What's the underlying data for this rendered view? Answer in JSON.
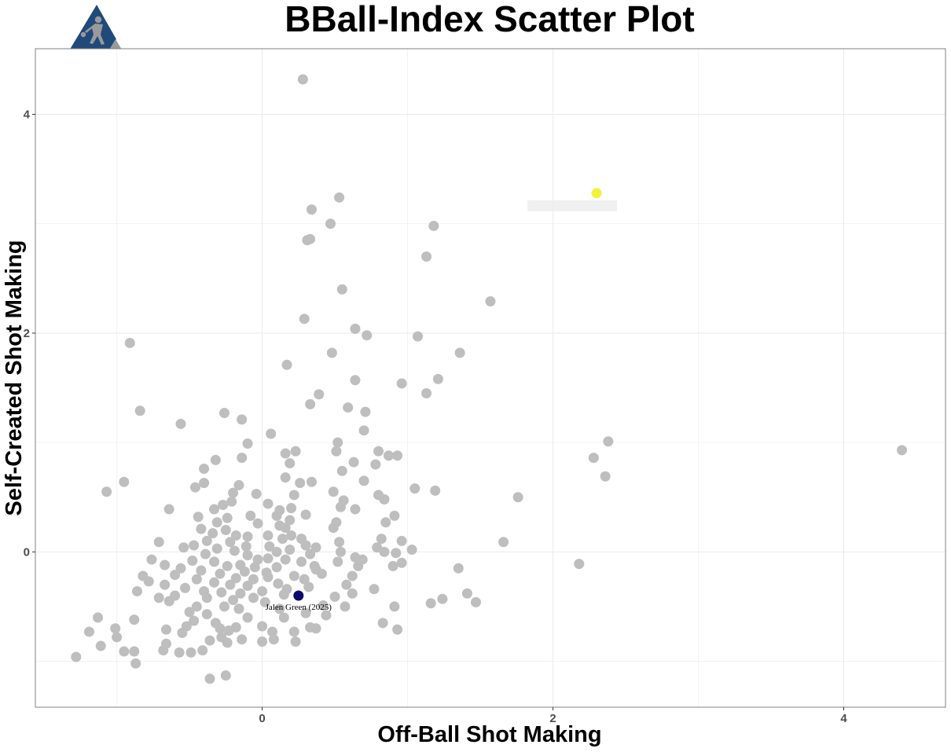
{
  "chart_data": {
    "type": "scatter",
    "title": "BBall-Index Scatter Plot",
    "xlabel": "Off-Ball Shot Making",
    "ylabel": "Self-Created Shot Making",
    "xlim": [
      -1.56,
      4.7
    ],
    "ylim": [
      -1.42,
      4.6
    ],
    "x_ticks": [
      0,
      2,
      4
    ],
    "y_ticks": [
      0,
      2,
      4
    ],
    "grid": true,
    "colors": {
      "background": "#ffffff",
      "grid": "#ebebeb",
      "frame": "#808080",
      "points": "#bebebe",
      "highlight": "#0b0b6e",
      "highlight_yellow": "#f2f23a",
      "logo_blue": "#1f4a7a",
      "logo_gray": "#9a9a9a"
    },
    "logo_icon": "basketball-player-triangle-logo",
    "highlighted": [
      {
        "name": "Jalen Green (2025)",
        "x": 0.25,
        "y": -0.4,
        "color": "#0b0b6e"
      },
      {
        "name": "",
        "x": 2.3,
        "y": 3.28,
        "color": "#f2f23a",
        "label_obscured": true
      }
    ],
    "points": [
      [
        0.28,
        4.32
      ],
      [
        0.53,
        3.24
      ],
      [
        0.34,
        3.13
      ],
      [
        0.47,
        3.0
      ],
      [
        1.18,
        2.98
      ],
      [
        0.33,
        2.86
      ],
      [
        0.31,
        2.85
      ],
      [
        1.13,
        2.7
      ],
      [
        0.55,
        2.4
      ],
      [
        1.57,
        2.29
      ],
      [
        0.29,
        2.13
      ],
      [
        0.64,
        2.04
      ],
      [
        0.72,
        1.98
      ],
      [
        1.07,
        1.97
      ],
      [
        -0.91,
        1.91
      ],
      [
        0.48,
        1.82
      ],
      [
        1.36,
        1.82
      ],
      [
        0.17,
        1.71
      ],
      [
        0.64,
        1.57
      ],
      [
        1.21,
        1.58
      ],
      [
        0.96,
        1.54
      ],
      [
        1.13,
        1.45
      ],
      [
        0.39,
        1.44
      ],
      [
        0.33,
        1.35
      ],
      [
        0.59,
        1.32
      ],
      [
        -0.84,
        1.29
      ],
      [
        0.71,
        1.28
      ],
      [
        -0.26,
        1.27
      ],
      [
        -0.14,
        1.21
      ],
      [
        -0.56,
        1.17
      ],
      [
        0.7,
        1.11
      ],
      [
        0.06,
        1.08
      ],
      [
        0.52,
        1.0
      ],
      [
        -0.1,
        0.99
      ],
      [
        2.38,
        1.01
      ],
      [
        0.16,
        0.9
      ],
      [
        0.23,
        0.92
      ],
      [
        0.51,
        0.92
      ],
      [
        0.8,
        0.92
      ],
      [
        0.87,
        0.88
      ],
      [
        0.93,
        0.88
      ],
      [
        4.4,
        0.93
      ],
      [
        2.28,
        0.86
      ],
      [
        -0.32,
        0.84
      ],
      [
        -0.14,
        0.86
      ],
      [
        0.63,
        0.82
      ],
      [
        0.78,
        0.8
      ],
      [
        0.19,
        0.81
      ],
      [
        -0.4,
        0.76
      ],
      [
        0.55,
        0.74
      ],
      [
        0.16,
        0.68
      ],
      [
        0.34,
        0.64
      ],
      [
        0.7,
        0.65
      ],
      [
        2.36,
        0.69
      ],
      [
        -0.95,
        0.64
      ],
      [
        -0.4,
        0.63
      ],
      [
        -0.46,
        0.59
      ],
      [
        -0.16,
        0.61
      ],
      [
        0.26,
        0.63
      ],
      [
        1.05,
        0.58
      ],
      [
        1.19,
        0.56
      ],
      [
        -1.07,
        0.55
      ],
      [
        0.49,
        0.55
      ],
      [
        0.8,
        0.52
      ],
      [
        0.84,
        0.48
      ],
      [
        1.76,
        0.5
      ],
      [
        -0.2,
        0.54
      ],
      [
        -0.04,
        0.53
      ],
      [
        0.22,
        0.52
      ],
      [
        -0.21,
        0.46
      ],
      [
        0.56,
        0.47
      ],
      [
        -0.27,
        0.43
      ],
      [
        0.04,
        0.44
      ],
      [
        0.2,
        0.4
      ],
      [
        0.12,
        0.38
      ],
      [
        -0.64,
        0.39
      ],
      [
        0.54,
        0.41
      ],
      [
        0.64,
        0.39
      ],
      [
        -0.33,
        0.39
      ],
      [
        -0.08,
        0.33
      ],
      [
        0.1,
        0.33
      ],
      [
        0.3,
        0.34
      ],
      [
        0.91,
        0.33
      ],
      [
        -0.44,
        0.32
      ],
      [
        -0.24,
        0.31
      ],
      [
        0.19,
        0.29
      ],
      [
        0.51,
        0.27
      ],
      [
        0.85,
        0.27
      ],
      [
        -0.31,
        0.27
      ],
      [
        -0.03,
        0.26
      ],
      [
        0.12,
        0.24
      ],
      [
        0.49,
        0.22
      ],
      [
        -0.42,
        0.21
      ],
      [
        -0.25,
        0.2
      ],
      [
        0.16,
        0.22
      ],
      [
        -0.34,
        0.17
      ],
      [
        -0.18,
        0.15
      ],
      [
        0.2,
        0.15
      ],
      [
        -0.1,
        0.14
      ],
      [
        0.04,
        0.15
      ],
      [
        0.14,
        0.12
      ],
      [
        -0.38,
        0.1
      ],
      [
        0.27,
        0.12
      ],
      [
        0.82,
        0.12
      ],
      [
        0.53,
        0.09
      ],
      [
        -0.22,
        0.09
      ],
      [
        1.66,
        0.09
      ],
      [
        0.96,
        0.1
      ],
      [
        -0.71,
        0.09
      ],
      [
        -0.47,
        0.06
      ],
      [
        0.3,
        0.06
      ],
      [
        0.05,
        0.05
      ],
      [
        -0.11,
        0.05
      ],
      [
        -0.31,
        0.03
      ],
      [
        0.19,
        0.02
      ],
      [
        0.37,
        0.04
      ],
      [
        0.79,
        0.04
      ],
      [
        1.03,
        0.02
      ],
      [
        -0.54,
        0.04
      ],
      [
        0.1,
        0.0
      ],
      [
        0.54,
        0.0
      ],
      [
        0.92,
        -0.01
      ],
      [
        0.84,
        0.0
      ],
      [
        -0.19,
        0.01
      ],
      [
        -0.39,
        -0.02
      ],
      [
        -0.1,
        -0.03
      ],
      [
        0.33,
        -0.02
      ],
      [
        0.64,
        -0.05
      ],
      [
        -0.03,
        -0.07
      ],
      [
        0.04,
        -0.06
      ],
      [
        -0.76,
        -0.07
      ],
      [
        0.16,
        -0.07
      ],
      [
        -0.48,
        -0.08
      ],
      [
        -0.33,
        -0.09
      ],
      [
        0.27,
        -0.09
      ],
      [
        0.52,
        -0.09
      ],
      [
        0.69,
        -0.07
      ],
      [
        0.96,
        -0.1
      ],
      [
        -0.67,
        -0.12
      ],
      [
        -0.15,
        -0.12
      ],
      [
        -0.24,
        -0.13
      ],
      [
        -0.05,
        -0.14
      ],
      [
        0.1,
        -0.14
      ],
      [
        0.36,
        -0.13
      ],
      [
        0.66,
        -0.13
      ],
      [
        0.9,
        -0.13
      ],
      [
        2.18,
        -0.11
      ],
      [
        -0.56,
        -0.15
      ],
      [
        0.37,
        -0.16
      ],
      [
        -0.42,
        -0.17
      ],
      [
        -0.12,
        -0.18
      ],
      [
        0.03,
        -0.19
      ],
      [
        1.35,
        -0.15
      ],
      [
        -0.82,
        -0.22
      ],
      [
        -0.29,
        -0.2
      ],
      [
        0.41,
        -0.2
      ],
      [
        -0.6,
        -0.21
      ],
      [
        0.22,
        -0.22
      ],
      [
        0.62,
        -0.22
      ],
      [
        -0.18,
        -0.24
      ],
      [
        0.04,
        -0.23
      ],
      [
        -0.78,
        -0.27
      ],
      [
        -0.45,
        -0.25
      ],
      [
        -0.06,
        -0.25
      ],
      [
        0.29,
        -0.25
      ],
      [
        -0.33,
        -0.28
      ],
      [
        0.11,
        -0.29
      ],
      [
        0.58,
        -0.3
      ],
      [
        -0.67,
        -0.3
      ],
      [
        -0.22,
        -0.3
      ],
      [
        -0.1,
        -0.31
      ],
      [
        0.32,
        -0.32
      ],
      [
        -0.53,
        -0.33
      ],
      [
        0.17,
        -0.34
      ],
      [
        -0.86,
        -0.36
      ],
      [
        0.0,
        -0.36
      ],
      [
        -0.4,
        -0.36
      ],
      [
        -0.28,
        -0.37
      ],
      [
        0.77,
        -0.34
      ],
      [
        -0.15,
        -0.38
      ],
      [
        0.15,
        -0.39
      ],
      [
        0.62,
        -0.38
      ],
      [
        -0.6,
        -0.4
      ],
      [
        1.41,
        -0.38
      ],
      [
        -0.71,
        -0.42
      ],
      [
        -0.38,
        -0.42
      ],
      [
        -0.06,
        -0.42
      ],
      [
        0.5,
        -0.41
      ],
      [
        -0.2,
        -0.44
      ],
      [
        1.24,
        -0.43
      ],
      [
        -0.64,
        -0.45
      ],
      [
        0.02,
        -0.46
      ],
      [
        1.16,
        -0.47
      ],
      [
        1.47,
        -0.46
      ],
      [
        0.42,
        -0.49
      ],
      [
        -0.45,
        -0.5
      ],
      [
        -0.26,
        -0.5
      ],
      [
        0.57,
        -0.5
      ],
      [
        0.91,
        -0.5
      ],
      [
        -0.16,
        -0.52
      ],
      [
        0.12,
        -0.52
      ],
      [
        -0.5,
        -0.55
      ],
      [
        0.3,
        -0.56
      ],
      [
        -0.38,
        -0.57
      ],
      [
        -1.13,
        -0.6
      ],
      [
        0.44,
        -0.58
      ],
      [
        -0.1,
        -0.6
      ],
      [
        0.15,
        -0.6
      ],
      [
        -0.47,
        -0.63
      ],
      [
        -0.88,
        -0.62
      ],
      [
        -0.32,
        -0.65
      ],
      [
        -0.52,
        -0.68
      ],
      [
        0.0,
        -0.68
      ],
      [
        0.83,
        -0.65
      ],
      [
        -0.18,
        -0.69
      ],
      [
        -0.29,
        -0.7
      ],
      [
        0.33,
        -0.69
      ],
      [
        -1.01,
        -0.7
      ],
      [
        -0.66,
        -0.71
      ],
      [
        -0.23,
        -0.72
      ],
      [
        0.07,
        -0.73
      ],
      [
        0.37,
        -0.7
      ],
      [
        0.93,
        -0.71
      ],
      [
        -1.19,
        -0.73
      ],
      [
        -0.55,
        -0.74
      ],
      [
        0.22,
        -0.73
      ],
      [
        -0.28,
        -0.78
      ],
      [
        -0.14,
        -0.8
      ],
      [
        -0.36,
        -0.81
      ],
      [
        -1.0,
        -0.78
      ],
      [
        0.08,
        -0.8
      ],
      [
        0.0,
        -0.82
      ],
      [
        -0.24,
        -0.83
      ],
      [
        0.23,
        -0.82
      ],
      [
        -0.66,
        -0.84
      ],
      [
        -1.11,
        -0.86
      ],
      [
        -0.95,
        -0.91
      ],
      [
        -0.88,
        -0.91
      ],
      [
        -0.57,
        -0.92
      ],
      [
        -0.49,
        -0.92
      ],
      [
        -0.41,
        -0.9
      ],
      [
        -0.68,
        -0.9
      ],
      [
        -1.28,
        -0.96
      ],
      [
        -0.87,
        -1.02
      ],
      [
        -0.36,
        -1.16
      ],
      [
        -0.25,
        -1.13
      ]
    ]
  }
}
